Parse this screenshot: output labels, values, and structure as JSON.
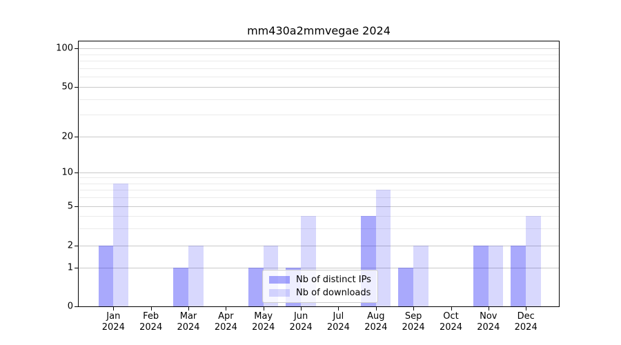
{
  "chart_data": {
    "type": "bar",
    "title": "mm430a2mmvegae 2024",
    "categories": [
      "Jan 2024",
      "Feb 2024",
      "Mar 2024",
      "Apr 2024",
      "May 2024",
      "Jun 2024",
      "Jul 2024",
      "Aug 2024",
      "Sep 2024",
      "Oct 2024",
      "Nov 2024",
      "Dec 2024"
    ],
    "series": [
      {
        "name": "Nb of distinct IPs",
        "color": "#a9a9fc",
        "fill": "rgba(10,10,245,0.35)",
        "values": [
          2,
          0,
          1,
          0,
          1,
          1,
          0,
          4,
          1,
          0,
          2,
          2
        ]
      },
      {
        "name": "Nb of downloads",
        "color": "#d8d8fd",
        "fill": "rgba(10,10,245,0.16)",
        "values": [
          8,
          0,
          2,
          0,
          2,
          4,
          0,
          7,
          2,
          0,
          2,
          4
        ]
      }
    ],
    "yticks": [
      0,
      1,
      2,
      5,
      10,
      20,
      50,
      100
    ],
    "minor_gridline_values": [
      3,
      4,
      6,
      7,
      8,
      9,
      30,
      40,
      60,
      70,
      80,
      90
    ],
    "ylim": [
      0,
      100
    ],
    "yscale": "log above 1, linear 0-1",
    "xlabel": "",
    "ylabel": "",
    "grid": true,
    "legend_position": "lower center"
  }
}
